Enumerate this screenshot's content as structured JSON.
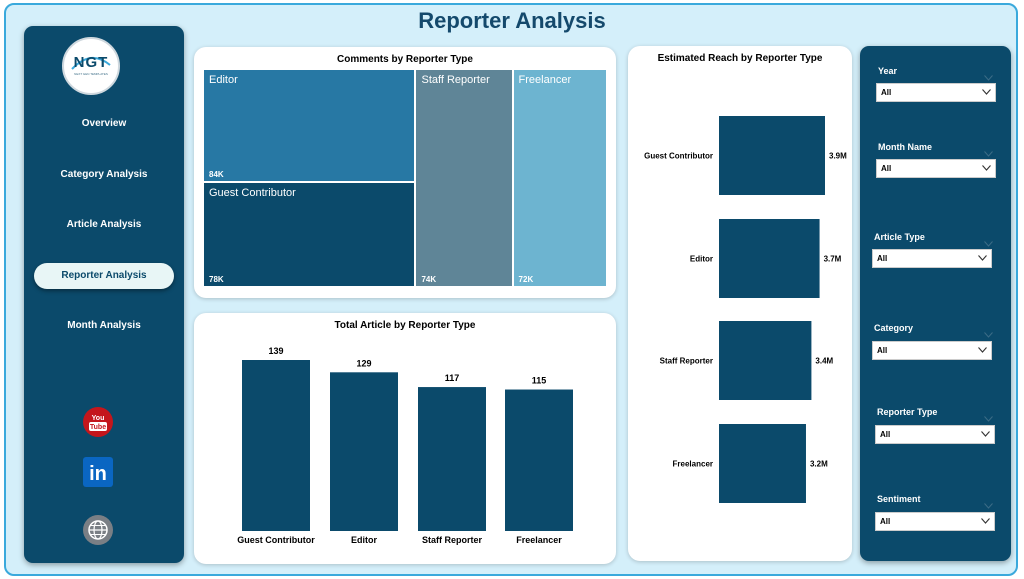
{
  "header": {
    "title": "Reporter Analysis"
  },
  "sidebar": {
    "logo_text": "NGT",
    "logo_subtext": "NEXT GEN TEMPLATES",
    "items": [
      {
        "label": "Overview",
        "active": false
      },
      {
        "label": "Category Analysis",
        "active": false
      },
      {
        "label": "Article Analysis",
        "active": false
      },
      {
        "label": "Reporter Analysis",
        "active": true
      },
      {
        "label": "Month Analysis",
        "active": false
      }
    ],
    "social": [
      {
        "icon": "youtube-icon",
        "text": "You Tube"
      },
      {
        "icon": "linkedin-icon",
        "text": "in"
      },
      {
        "icon": "globe-icon",
        "text": ""
      }
    ]
  },
  "colors": {
    "navy": "#0b4a6b",
    "editor": "#2778a4",
    "guest": "#0b4a6b",
    "staff": "#5f8597",
    "freelancer": "#6db4d0",
    "background": "#d4effa"
  },
  "chart_data": [
    {
      "type": "treemap",
      "title": "Comments by Reporter Type",
      "items": [
        {
          "label": "Editor",
          "value": 84,
          "display": "84K"
        },
        {
          "label": "Guest Contributor",
          "value": 78,
          "display": "78K"
        },
        {
          "label": "Staff Reporter",
          "value": 74,
          "display": "74K"
        },
        {
          "label": "Freelancer",
          "value": 72,
          "display": "72K"
        }
      ]
    },
    {
      "type": "bar",
      "title": "Total Article by Reporter Type",
      "categories": [
        "Guest Contributor",
        "Editor",
        "Staff Reporter",
        "Freelancer"
      ],
      "values": [
        139,
        129,
        117,
        115
      ],
      "ylim": [
        0,
        139
      ]
    },
    {
      "type": "bar",
      "orientation": "horizontal",
      "title": "Estimated Reach by Reporter Type",
      "categories": [
        "Guest Contributor",
        "Editor",
        "Staff Reporter",
        "Freelancer"
      ],
      "values": [
        3.9,
        3.7,
        3.4,
        3.2
      ],
      "labels": [
        "3.9M",
        "3.7M",
        "3.4M",
        "3.2M"
      ],
      "unit": "M"
    }
  ],
  "slicers": [
    {
      "label": "Year",
      "value": "All"
    },
    {
      "label": "Month Name",
      "value": "All"
    },
    {
      "label": "Article Type",
      "value": "All"
    },
    {
      "label": "Category",
      "value": "All"
    },
    {
      "label": "Reporter Type",
      "value": "All"
    },
    {
      "label": "Sentiment",
      "value": "All"
    }
  ]
}
